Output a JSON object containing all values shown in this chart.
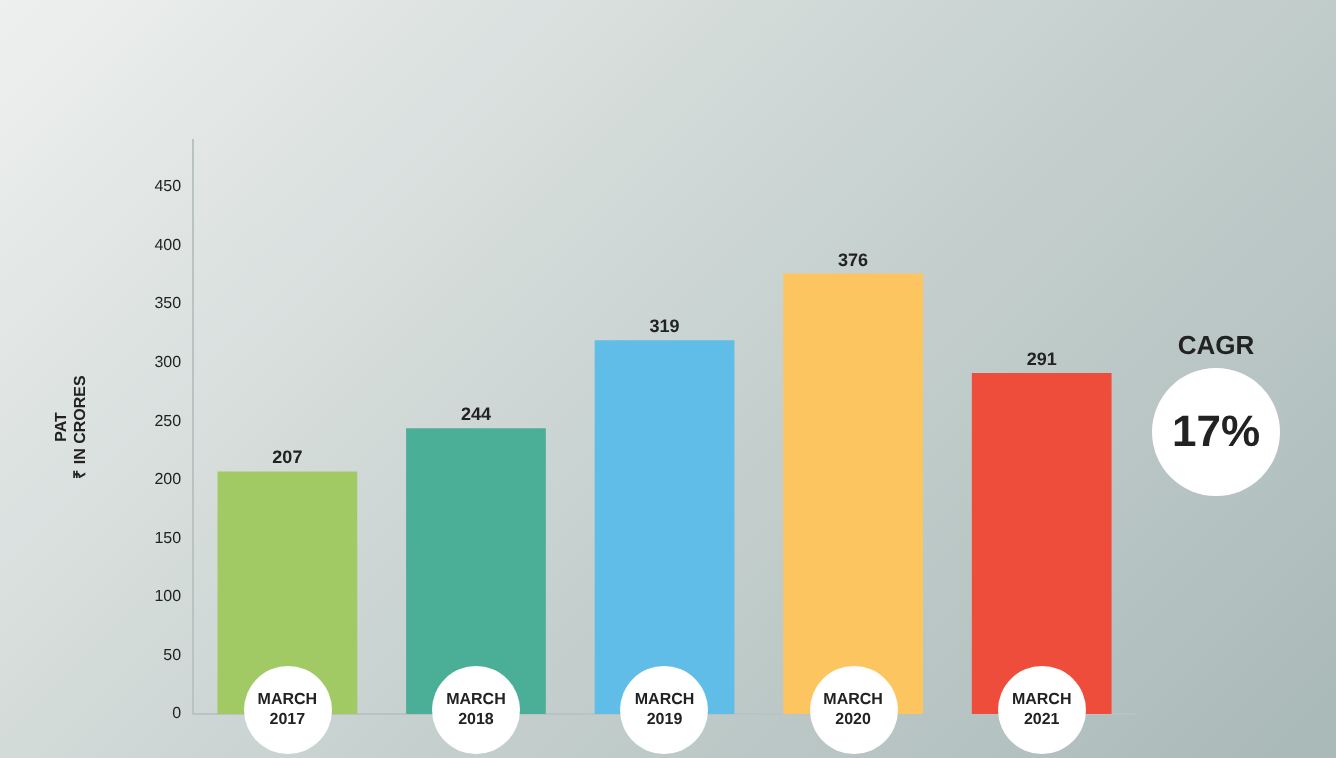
{
  "chart_data": {
    "type": "bar",
    "ylabel": "PAT\n₹ IN CRORES",
    "categories": [
      "MARCH 2017",
      "MARCH 2018",
      "MARCH 2019",
      "MARCH 2020",
      "MARCH 2021"
    ],
    "values": [
      207,
      244,
      319,
      376,
      291
    ],
    "colors": [
      "#a1c964",
      "#4aaf96",
      "#5fbde8",
      "#fcc55f",
      "#ef4d3b"
    ],
    "ylim": [
      0,
      490
    ],
    "yticks": [
      0,
      50,
      100,
      150,
      200,
      250,
      300,
      350,
      400,
      450
    ],
    "grid": false,
    "legend": false,
    "data_labels": true,
    "annotations": [
      "CAGR",
      "17%"
    ]
  }
}
